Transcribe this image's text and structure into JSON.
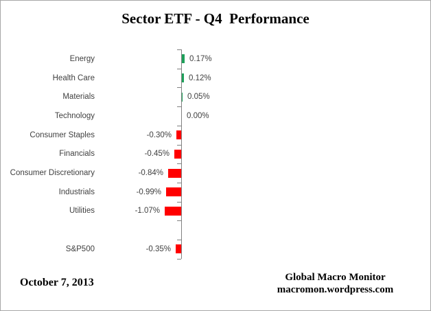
{
  "title": "Sector ETF - Q4  Performance",
  "footer": {
    "date": "October 7, 2013",
    "credit_line1": "Global Macro Monitor",
    "credit_line2": "macromon.wordpress.com"
  },
  "colors": {
    "positive_bar": "#1ea05a",
    "negative_bar": "#ff0000",
    "axis": "#808080",
    "text_labels": "#404040"
  },
  "chart_data": {
    "type": "bar",
    "orientation": "horizontal",
    "title": "Sector ETF - Q4  Performance",
    "xlabel": "",
    "ylabel": "",
    "grid": false,
    "legend": false,
    "axis_value_range_pct": [
      -1.25,
      0.5
    ],
    "categories": [
      "Energy",
      "Health Care",
      "Materials",
      "Technology",
      "Consumer Staples",
      "Financials",
      "Consumer Discretionary",
      "Industrials",
      "Utilities",
      "",
      "S&P500"
    ],
    "values": [
      0.17,
      0.12,
      0.05,
      0.0,
      -0.3,
      -0.45,
      -0.84,
      -0.99,
      -1.07,
      null,
      -0.35
    ],
    "value_labels": [
      "0.17%",
      "0.12%",
      "0.05%",
      "0.00%",
      "-0.30%",
      "-0.45%",
      "-0.84%",
      "-0.99%",
      "-1.07%",
      "",
      "-0.35%"
    ]
  }
}
